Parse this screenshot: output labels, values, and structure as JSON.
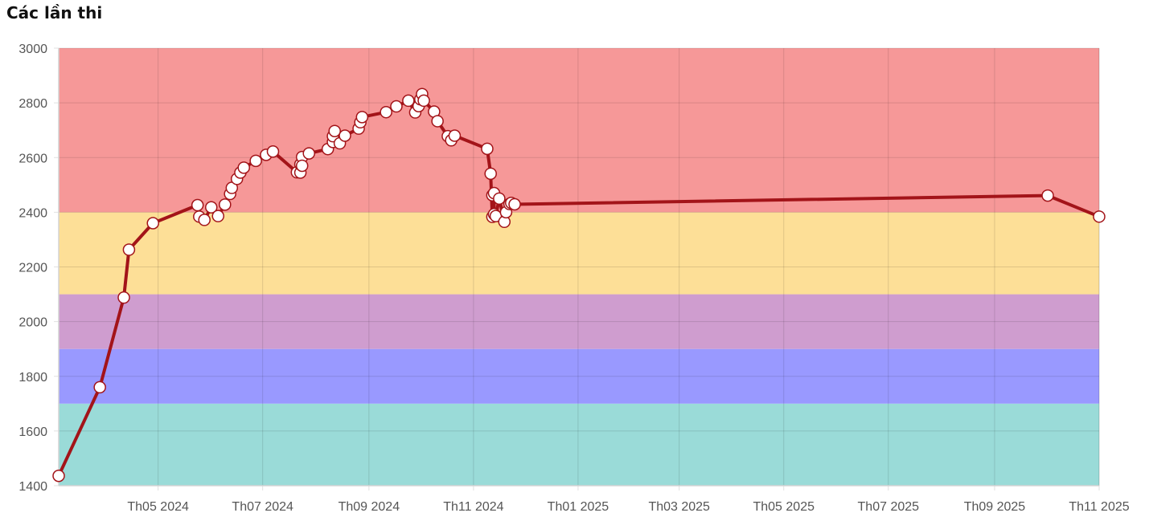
{
  "page": {
    "title": "Các lần thi"
  },
  "chart_data": {
    "type": "line",
    "title": "Các lần thi",
    "xlabel": "",
    "ylabel": "",
    "ylim": [
      1400,
      3000
    ],
    "y_ticks": [
      1400,
      1600,
      1800,
      2000,
      2200,
      2400,
      2600,
      2800,
      3000
    ],
    "xlim": [
      "2024-03-04",
      "2025-11-01"
    ],
    "x_ticks": [
      {
        "date": "2024-05-01",
        "label": "Th05 2024"
      },
      {
        "date": "2024-07-01",
        "label": "Th07 2024"
      },
      {
        "date": "2024-09-01",
        "label": "Th09 2024"
      },
      {
        "date": "2024-11-01",
        "label": "Th11 2024"
      },
      {
        "date": "2025-01-01",
        "label": "Th01 2025"
      },
      {
        "date": "2025-03-01",
        "label": "Th03 2025"
      },
      {
        "date": "2025-05-01",
        "label": "Th05 2025"
      },
      {
        "date": "2025-07-01",
        "label": "Th07 2025"
      },
      {
        "date": "2025-09-01",
        "label": "Th09 2025"
      },
      {
        "date": "2025-11-01",
        "label": "Th11 2025"
      }
    ],
    "grid": true,
    "bands": [
      {
        "from": 1400,
        "to": 1700,
        "color": "#9adbd8"
      },
      {
        "from": 1700,
        "to": 1900,
        "color": "#9999ff"
      },
      {
        "from": 1900,
        "to": 2100,
        "color": "#cf9dcf"
      },
      {
        "from": 2100,
        "to": 2400,
        "color": "#fddf97"
      },
      {
        "from": 2400,
        "to": 3000,
        "color": "#f69898"
      }
    ],
    "line_color": "#a31419",
    "point_fill": "#ffffff",
    "series": [
      {
        "x": [
          "2024-03-04",
          "2024-03-28",
          "2024-04-11",
          "2024-04-14",
          "2024-04-28",
          "2024-05-24",
          "2024-05-25",
          "2024-05-28",
          "2024-06-01",
          "2024-06-05",
          "2024-06-09",
          "2024-06-12",
          "2024-06-13",
          "2024-06-16",
          "2024-06-18",
          "2024-06-20",
          "2024-06-27",
          "2024-07-03",
          "2024-07-07",
          "2024-07-21",
          "2024-07-23",
          "2024-07-23",
          "2024-07-24",
          "2024-07-24",
          "2024-07-28",
          "2024-08-08",
          "2024-08-11",
          "2024-08-11",
          "2024-08-12",
          "2024-08-15",
          "2024-08-18",
          "2024-08-26",
          "2024-08-27",
          "2024-08-28",
          "2024-09-11",
          "2024-09-17",
          "2024-09-24",
          "2024-09-28",
          "2024-09-30",
          "2024-10-01",
          "2024-10-02",
          "2024-10-03",
          "2024-10-09",
          "2024-10-11",
          "2024-10-17",
          "2024-10-19",
          "2024-10-21",
          "2024-11-09",
          "2024-11-11",
          "2024-11-12",
          "2024-11-12",
          "2024-11-13",
          "2024-11-13",
          "2024-11-14",
          "2024-11-16",
          "2024-11-19",
          "2024-11-20",
          "2024-11-22",
          "2024-11-23",
          "2024-11-25",
          "2025-10-02",
          "2025-11-01"
        ],
        "y": [
          1436,
          1760,
          2088,
          2263,
          2360,
          2426,
          2384,
          2372,
          2418,
          2386,
          2428,
          2467,
          2489,
          2522,
          2545,
          2563,
          2588,
          2610,
          2622,
          2546,
          2545,
          2575,
          2602,
          2570,
          2615,
          2631,
          2657,
          2678,
          2697,
          2652,
          2680,
          2706,
          2729,
          2748,
          2766,
          2787,
          2808,
          2765,
          2788,
          2813,
          2832,
          2808,
          2768,
          2733,
          2678,
          2663,
          2680,
          2632,
          2541,
          2383,
          2462,
          2470,
          2393,
          2386,
          2450,
          2365,
          2400,
          2430,
          2434,
          2429,
          2461,
          2384
        ]
      }
    ]
  }
}
